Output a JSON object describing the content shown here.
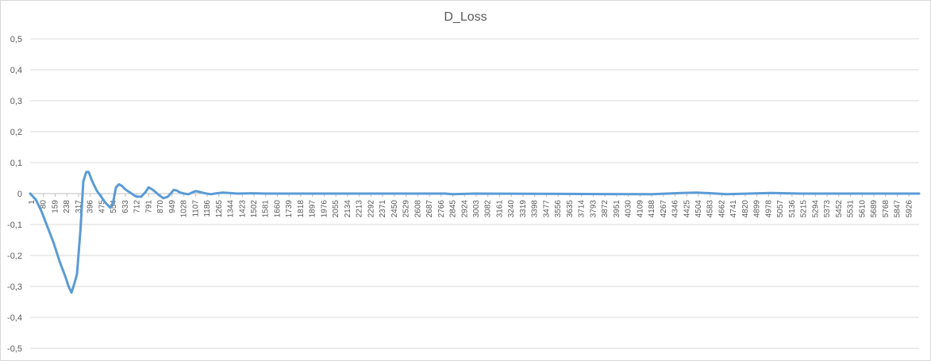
{
  "chart_data": {
    "type": "line",
    "title": "D_Loss",
    "xlabel": "",
    "ylabel": "",
    "ylim": [
      -0.5,
      0.5
    ],
    "y_ticks": [
      "0,5",
      "0,4",
      "0,3",
      "0,2",
      "0,1",
      "0",
      "-0,1",
      "-0,2",
      "-0,3",
      "-0,4",
      "-0,5"
    ],
    "y_tick_values": [
      0.5,
      0.4,
      0.3,
      0.2,
      0.1,
      0,
      -0.1,
      -0.2,
      -0.3,
      -0.4,
      -0.5
    ],
    "x_ticks": [
      "1",
      "80",
      "159",
      "238",
      "317",
      "396",
      "475",
      "554",
      "633",
      "712",
      "791",
      "870",
      "949",
      "1028",
      "1107",
      "1186",
      "1265",
      "1344",
      "1423",
      "1502",
      "1581",
      "1660",
      "1739",
      "1818",
      "1897",
      "1976",
      "2055",
      "2134",
      "2213",
      "2292",
      "2371",
      "2450",
      "2529",
      "2608",
      "2687",
      "2766",
      "2845",
      "2924",
      "3003",
      "3082",
      "3161",
      "3240",
      "3319",
      "3398",
      "3477",
      "3556",
      "3635",
      "3714",
      "3793",
      "3872",
      "3951",
      "4030",
      "4109",
      "4188",
      "4267",
      "4346",
      "4425",
      "4504",
      "4583",
      "4662",
      "4741",
      "4820",
      "4899",
      "4978",
      "5057",
      "5136",
      "5215",
      "5294",
      "5373",
      "5452",
      "5531",
      "5610",
      "5689",
      "5768",
      "5847",
      "5926"
    ],
    "x_range": [
      1,
      6000
    ],
    "grid": true,
    "line_color": "#5b9bd5",
    "series": [
      {
        "x": [
          1,
          40,
          80,
          120,
          160,
          200,
          240,
          260,
          280,
          300,
          317,
          340,
          360,
          380,
          396,
          420,
          450,
          480,
          510,
          540,
          560,
          580,
          600,
          620,
          640,
          660,
          680,
          700,
          720,
          750,
          780,
          800,
          820,
          840,
          870,
          900,
          930,
          949,
          970,
          990,
          1010,
          1040,
          1070,
          1100,
          1120,
          1150,
          1180,
          1220,
          1260,
          1300,
          1344,
          1400,
          1500,
          1600,
          2000,
          2800,
          2850,
          3000,
          3600,
          4200,
          4400,
          4500,
          4600,
          4700,
          5000,
          5100,
          5200,
          6000
        ],
        "values": [
          0,
          -0.02,
          -0.06,
          -0.11,
          -0.16,
          -0.22,
          -0.27,
          -0.3,
          -0.32,
          -0.29,
          -0.26,
          -0.12,
          0.04,
          0.07,
          0.07,
          0.04,
          0.01,
          -0.01,
          -0.03,
          -0.045,
          -0.03,
          0.02,
          0.03,
          0.025,
          0.015,
          0.008,
          0.002,
          -0.005,
          -0.01,
          -0.01,
          0.005,
          0.02,
          0.015,
          0.008,
          -0.005,
          -0.015,
          -0.01,
          0.0,
          0.012,
          0.01,
          0.004,
          0.0,
          -0.002,
          0.005,
          0.008,
          0.005,
          0.001,
          -0.002,
          0.001,
          0.003,
          0.002,
          0.0,
          0.001,
          0.0,
          0.0,
          0.0,
          -0.002,
          0.0,
          -0.001,
          -0.002,
          0.002,
          0.003,
          0.001,
          -0.002,
          0.002,
          0.001,
          0.0,
          0.0
        ]
      }
    ]
  }
}
